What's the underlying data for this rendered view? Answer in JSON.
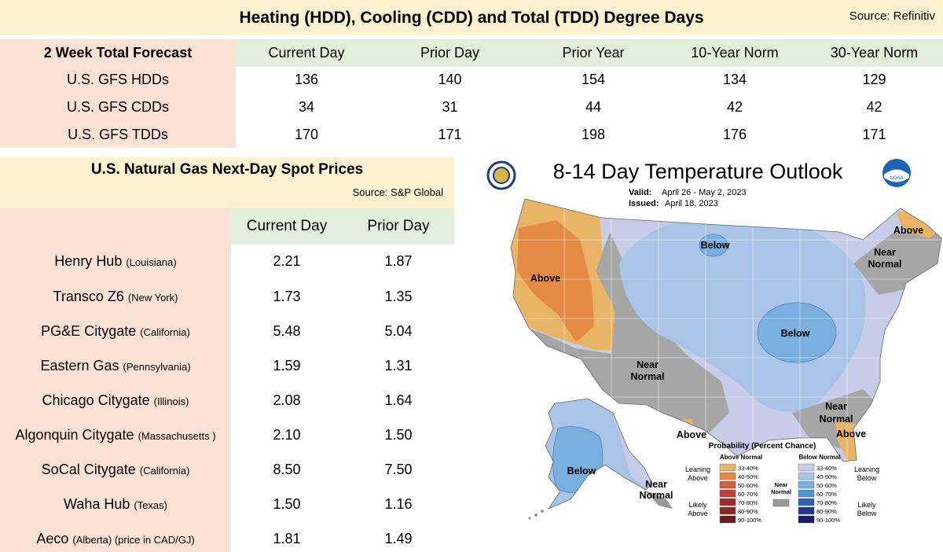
{
  "header": {
    "title": "Heating (HDD), Cooling (CDD) and Total (TDD) Degree Days",
    "source": "Source: Refinitiv"
  },
  "degree_days": {
    "section_label": "2 Week Total Forecast",
    "columns": [
      "Current Day",
      "Prior Day",
      "Prior Year",
      "10-Year Norm",
      "30-Year Norm"
    ],
    "rows": [
      {
        "label": "U.S. GFS HDDs",
        "values": [
          "136",
          "140",
          "154",
          "134",
          "129"
        ]
      },
      {
        "label": "U.S. GFS CDDs",
        "values": [
          "34",
          "31",
          "44",
          "42",
          "42"
        ]
      },
      {
        "label": "U.S. GFS TDDs",
        "values": [
          "170",
          "171",
          "198",
          "176",
          "171"
        ]
      }
    ]
  },
  "spot_prices": {
    "title": "U.S. Natural Gas Next-Day Spot Prices",
    "source": "Source: S&P Global",
    "columns": [
      "Current Day",
      "Prior Day"
    ],
    "rows": [
      {
        "hub": "Henry Hub",
        "qualifier": "(Louisiana)",
        "current": "2.21",
        "prior": "1.87"
      },
      {
        "hub": "Transco Z6",
        "qualifier": "(New York)",
        "current": "1.73",
        "prior": "1.35"
      },
      {
        "hub": "PG&E Citygate",
        "qualifier": "(California)",
        "current": "5.48",
        "prior": "5.04"
      },
      {
        "hub": "Eastern Gas",
        "qualifier": "(Pennsylvania)",
        "current": "1.59",
        "prior": "1.31"
      },
      {
        "hub": "Chicago Citygate",
        "qualifier": "(Illinois)",
        "current": "2.08",
        "prior": "1.64"
      },
      {
        "hub": "Algonquin Citygate",
        "qualifier": "(Massachusetts )",
        "current": "2.10",
        "prior": "1.50"
      },
      {
        "hub": "SoCal Citygate",
        "qualifier": "(California)",
        "current": "8.50",
        "prior": "7.50"
      },
      {
        "hub": "Waha Hub",
        "qualifier": "(Texas)",
        "current": "1.50",
        "prior": "1.16"
      },
      {
        "hub": "Aeco",
        "qualifier": "(Alberta) (price in CAD/GJ)",
        "current": "1.81",
        "prior": "1.49"
      }
    ]
  },
  "outlook_map": {
    "title": "8-14 Day Temperature Outlook",
    "valid_label": "Valid:",
    "valid_value": "April 26 - May 2, 2023",
    "issued_label": "Issued:",
    "issued_value": "April 18, 2023",
    "logo_right": "NOAA",
    "region_labels": {
      "above_west": "Above",
      "above_ne": "Above",
      "above_fl": "Above",
      "above_se": "Above",
      "below_north": "Below",
      "below_east": "Below",
      "below_ak": "Below",
      "normal_sw_1": "Near",
      "normal_sw_2": "Normal",
      "normal_ne_1": "Near",
      "normal_ne_2": "Normal",
      "normal_se_1": "Near",
      "normal_se_2": "Normal",
      "normal_ak_1": "Near",
      "normal_ak_2": "Normal"
    },
    "legend": {
      "title": "Probability (Percent Chance)",
      "above_header": "Above Normal",
      "below_header": "Below Normal",
      "near_1": "Near",
      "near_2": "Normal",
      "leaning_above_1": "Leaning",
      "leaning_above_2": "Above",
      "likely_above_1": "Likely",
      "likely_above_2": "Above",
      "leaning_below_1": "Leaning",
      "leaning_below_2": "Below",
      "likely_below_1": "Likely",
      "likely_below_2": "Below",
      "above_colors": [
        "#e8b567",
        "#e58a45",
        "#da5a3b",
        "#c83a33",
        "#a52b2b",
        "#8a2828",
        "#6a1f1f"
      ],
      "below_colors": [
        "#c7cde9",
        "#a9c4e6",
        "#79b0e0",
        "#4b94d6",
        "#2c64b2",
        "#23348b",
        "#1d1a5e"
      ],
      "near_color": "#999999",
      "bins": [
        "33-40%",
        "40-50%",
        "50-60%",
        "60-70%",
        "70-80%",
        "80-90%",
        "90-100%"
      ]
    }
  },
  "chart_data": {
    "type": "table",
    "tables": [
      {
        "title": "Heating (HDD), Cooling (CDD) and Total (TDD) Degree Days",
        "row_header": "2 Week Total Forecast",
        "columns": [
          "Current Day",
          "Prior Day",
          "Prior Year",
          "10-Year Norm",
          "30-Year Norm"
        ],
        "rows": [
          {
            "label": "U.S. GFS HDDs",
            "values": [
              136,
              140,
              154,
              134,
              129
            ]
          },
          {
            "label": "U.S. GFS CDDs",
            "values": [
              34,
              31,
              44,
              42,
              42
            ]
          },
          {
            "label": "U.S. GFS TDDs",
            "values": [
              170,
              171,
              198,
              176,
              171
            ]
          }
        ]
      },
      {
        "title": "U.S. Natural Gas Next-Day Spot Prices",
        "columns": [
          "Current Day",
          "Prior Day"
        ],
        "rows": [
          {
            "label": "Henry Hub (Louisiana)",
            "values": [
              2.21,
              1.87
            ]
          },
          {
            "label": "Transco Z6 (New York)",
            "values": [
              1.73,
              1.35
            ]
          },
          {
            "label": "PG&E Citygate (California)",
            "values": [
              5.48,
              5.04
            ]
          },
          {
            "label": "Eastern Gas (Pennsylvania)",
            "values": [
              1.59,
              1.31
            ]
          },
          {
            "label": "Chicago Citygate (Illinois)",
            "values": [
              2.08,
              1.64
            ]
          },
          {
            "label": "Algonquin Citygate (Massachusetts )",
            "values": [
              2.1,
              1.5
            ]
          },
          {
            "label": "SoCal Citygate (California)",
            "values": [
              8.5,
              7.5
            ]
          },
          {
            "label": "Waha Hub (Texas)",
            "values": [
              1.5,
              1.16
            ]
          },
          {
            "label": "Aeco (Alberta) (price in CAD/GJ)",
            "values": [
              1.81,
              1.49
            ]
          }
        ]
      }
    ]
  }
}
